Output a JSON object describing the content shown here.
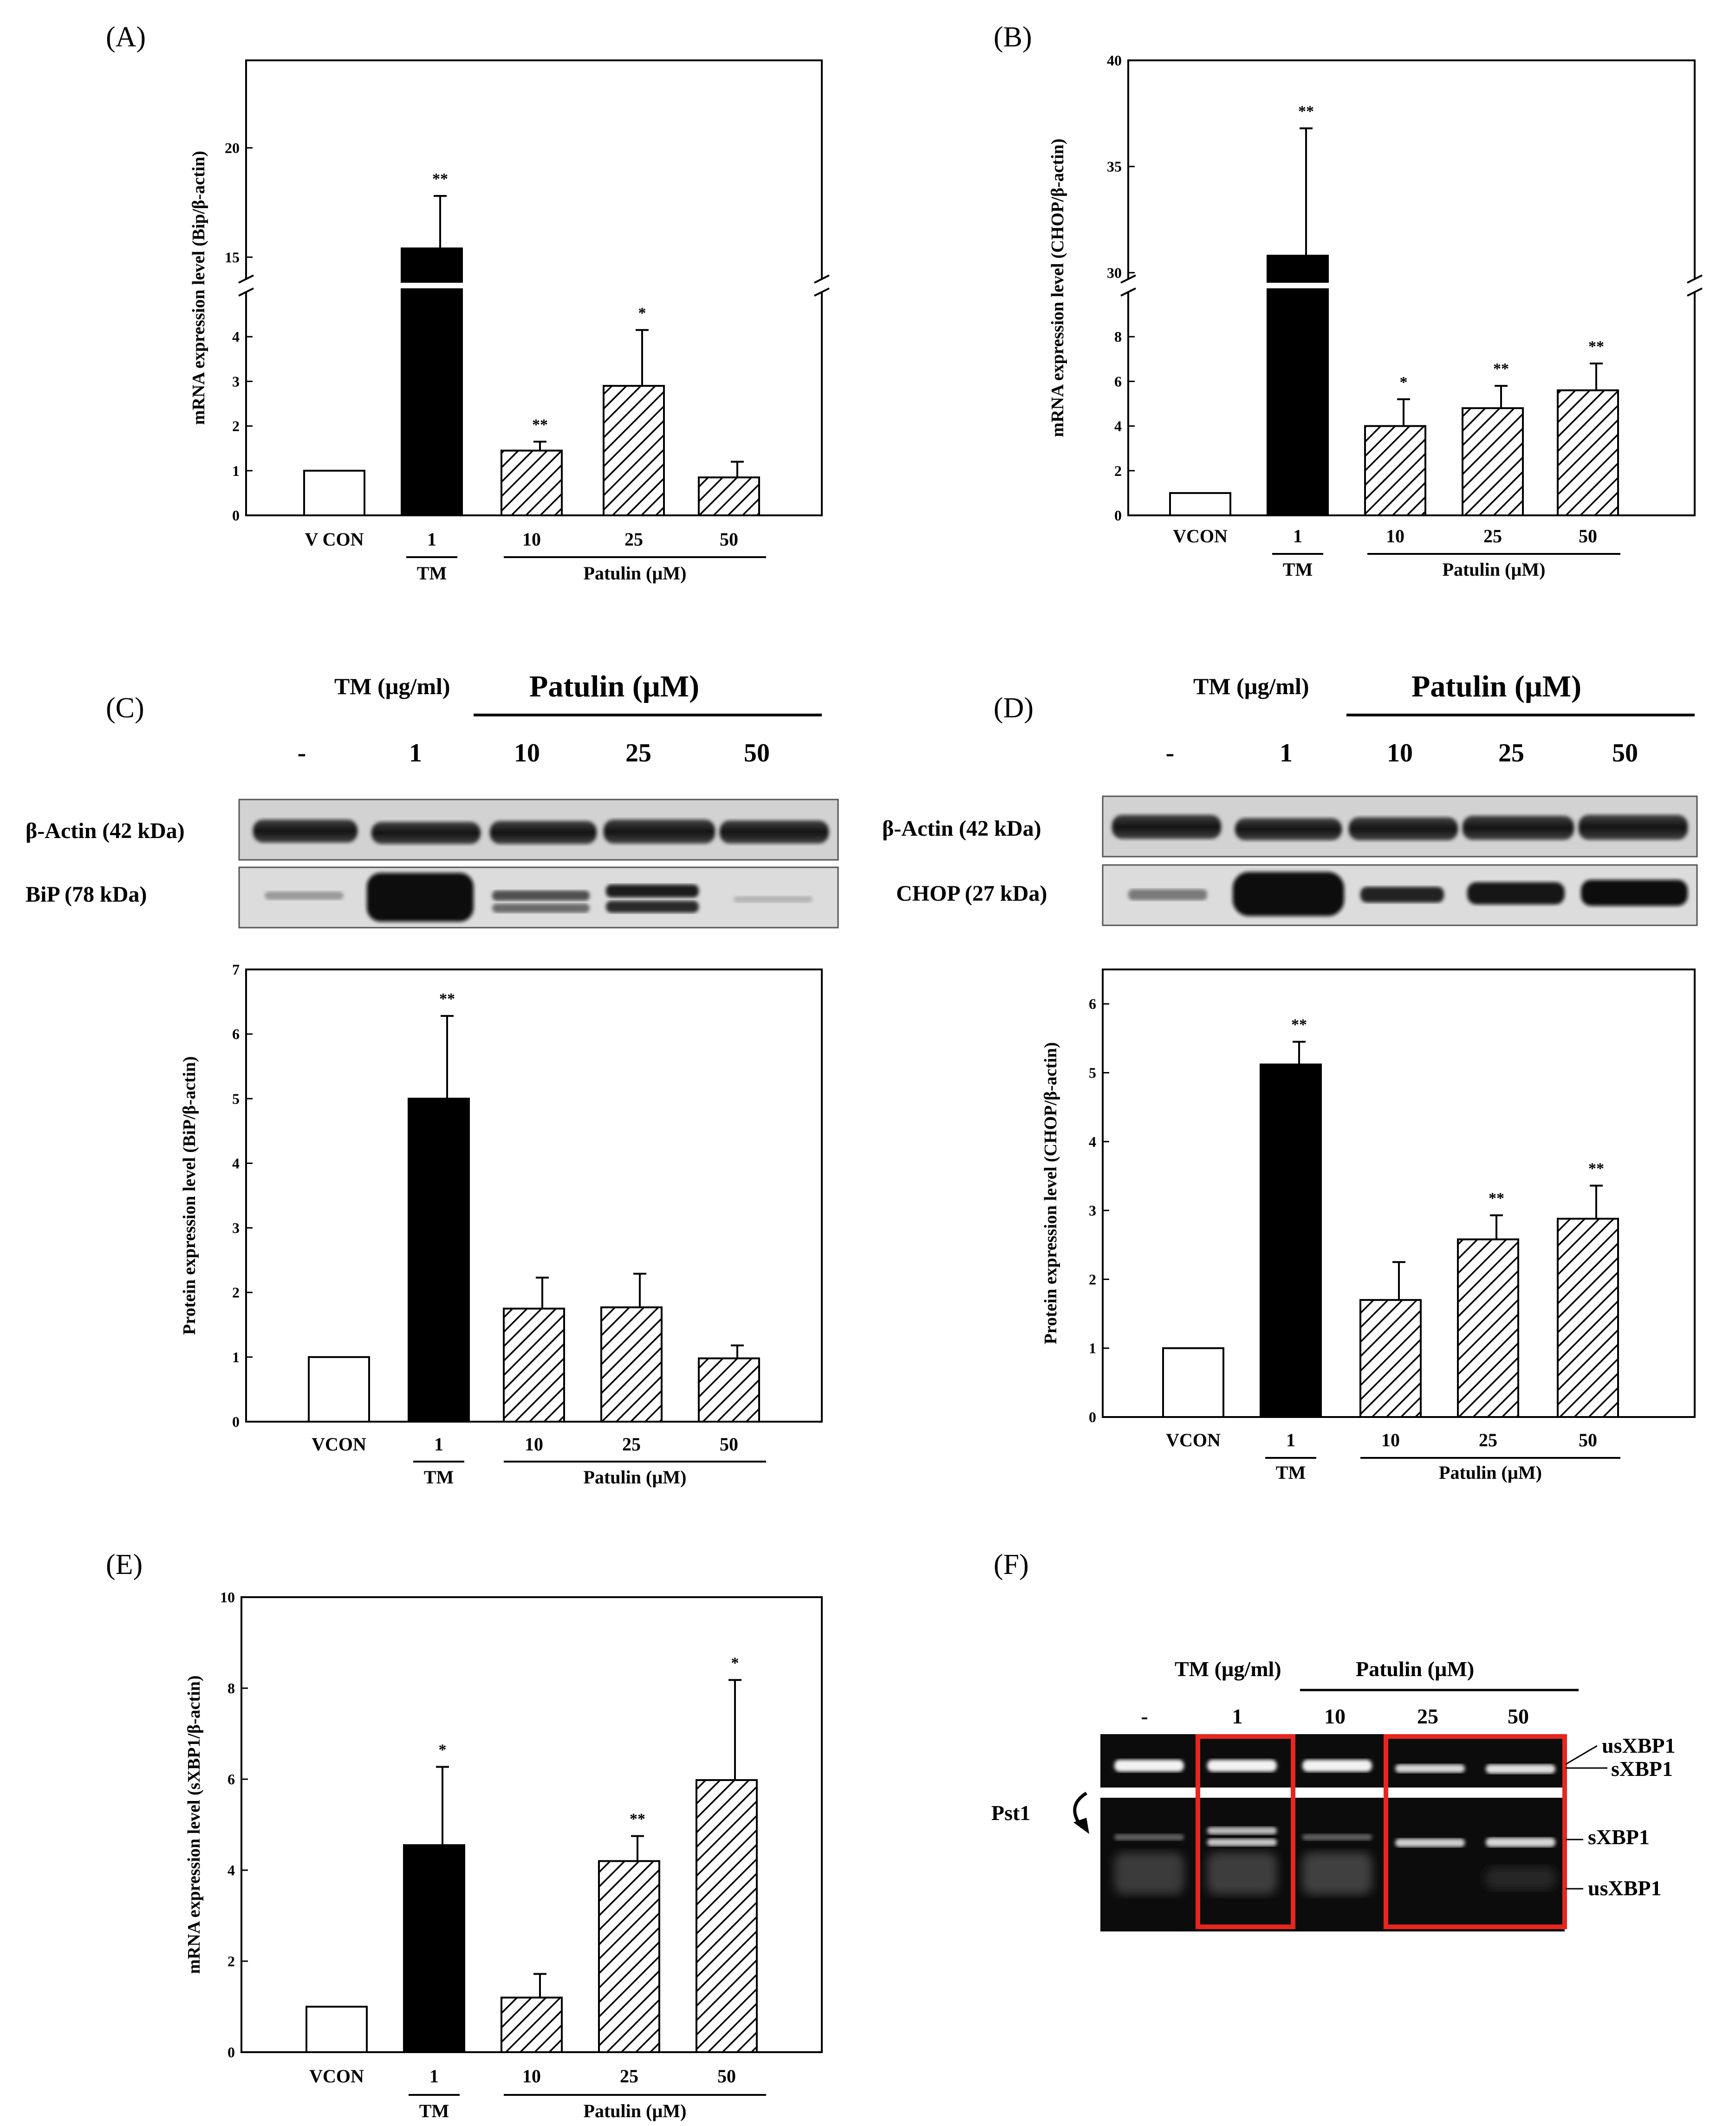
{
  "panels": {
    "A": "(A)",
    "B": "(B)",
    "C": "(C)",
    "D": "(D)",
    "E": "(E)",
    "F": "(F)"
  },
  "group_labels": {
    "tm": "TM",
    "patulin": "Patulin (µM)"
  },
  "chart_data": [
    {
      "id": "A",
      "type": "bar",
      "title": "",
      "ylabel": "mRNA expression level (Bip/β-actin)",
      "xlabel": "",
      "categories": [
        "V CON",
        "1",
        "10",
        "25",
        "50"
      ],
      "values": [
        1.0,
        15.4,
        1.45,
        2.9,
        0.85
      ],
      "errors": [
        0,
        2.4,
        0.2,
        1.25,
        0.35
      ],
      "significance": [
        "",
        "**",
        "**",
        "*",
        ""
      ],
      "fills": [
        "white",
        "black",
        "hatch",
        "hatch",
        "hatch"
      ],
      "broken_axis": true,
      "ylim_lower": [
        0,
        5
      ],
      "ylim_upper": [
        14,
        24
      ],
      "yticks_lower": [
        0,
        1,
        2,
        3,
        4
      ],
      "yticks_upper": [
        15,
        20
      ]
    },
    {
      "id": "B",
      "type": "bar",
      "title": "",
      "ylabel": "mRNA expression level (CHOP/β-actin)",
      "xlabel": "",
      "categories": [
        "VCON",
        "1",
        "10",
        "25",
        "50"
      ],
      "values": [
        1.0,
        30.8,
        4.0,
        4.8,
        5.6
      ],
      "errors": [
        0,
        6.0,
        1.2,
        1.0,
        1.2
      ],
      "significance": [
        "",
        "**",
        "*",
        "**",
        "**"
      ],
      "fills": [
        "white",
        "black",
        "hatch",
        "hatch",
        "hatch"
      ],
      "broken_axis": true,
      "ylim_lower": [
        0,
        10
      ],
      "ylim_upper": [
        29.7,
        40
      ],
      "yticks_lower": [
        0,
        2,
        4,
        6,
        8
      ],
      "yticks_upper": [
        30,
        35,
        40
      ]
    },
    {
      "id": "C",
      "type": "bar",
      "title": "",
      "ylabel": "Protein expression level (BiP/β-actin)",
      "xlabel": "",
      "categories": [
        "VCON",
        "1",
        "10",
        "25",
        "50"
      ],
      "values": [
        1.0,
        5.0,
        1.75,
        1.77,
        0.98
      ],
      "errors": [
        0,
        1.28,
        0.48,
        0.52,
        0.2
      ],
      "significance": [
        "",
        "**",
        "",
        "",
        ""
      ],
      "fills": [
        "white",
        "black",
        "hatch",
        "hatch",
        "hatch"
      ],
      "ylim": [
        0,
        7
      ],
      "yticks": [
        0,
        1,
        2,
        3,
        4,
        5,
        6,
        7
      ]
    },
    {
      "id": "D",
      "type": "bar",
      "title": "",
      "ylabel": "Protein expression level (CHOP/β-actin)",
      "xlabel": "",
      "categories": [
        "VCON",
        "1",
        "10",
        "25",
        "50"
      ],
      "values": [
        1.0,
        5.12,
        1.7,
        2.58,
        2.88
      ],
      "errors": [
        0,
        0.33,
        0.55,
        0.35,
        0.48
      ],
      "significance": [
        "",
        "**",
        "",
        "**",
        "**"
      ],
      "fills": [
        "white",
        "black",
        "hatch",
        "hatch",
        "hatch"
      ],
      "ylim": [
        0,
        6.5
      ],
      "yticks": [
        0,
        1,
        2,
        3,
        4,
        5,
        6
      ]
    },
    {
      "id": "E",
      "type": "bar",
      "title": "",
      "ylabel": "mRNA expression level (sXBP1/β-actin)",
      "xlabel": "",
      "categories": [
        "VCON",
        "1",
        "10",
        "25",
        "50"
      ],
      "values": [
        1.0,
        4.55,
        1.2,
        4.2,
        5.98
      ],
      "errors": [
        0,
        1.72,
        0.52,
        0.55,
        2.2
      ],
      "significance": [
        "",
        "*",
        "",
        "**",
        "*"
      ],
      "fills": [
        "white",
        "black",
        "hatch",
        "hatch",
        "hatch"
      ],
      "ylim": [
        0,
        10
      ],
      "yticks": [
        0,
        2,
        4,
        6,
        8,
        10
      ]
    }
  ],
  "blot_C": {
    "tm_header": "TM (µg/ml)",
    "patulin_header": "Patulin (µM)",
    "lanes": [
      "-",
      "1",
      "10",
      "25",
      "50"
    ],
    "rows": [
      "β-Actin (42 kDa)",
      "BiP (78 kDa)"
    ]
  },
  "blot_D": {
    "tm_header": "TM (µg/ml)",
    "patulin_header": "Patulin (µM)",
    "lanes": [
      "-",
      "1",
      "10",
      "25",
      "50"
    ],
    "rows": [
      "β-Actin (42 kDa)",
      "CHOP (27 kDa)"
    ]
  },
  "gel_F": {
    "tm_header": "TM (µg/ml)",
    "patulin_header": "Patulin (µM)",
    "lanes": [
      "-",
      "1",
      "10",
      "25",
      "50"
    ],
    "enzyme": "Pst1",
    "right_labels": [
      "usXBP1",
      "sXBP1",
      "sXBP1",
      "usXBP1"
    ],
    "highlight_color": "#e8261f"
  }
}
